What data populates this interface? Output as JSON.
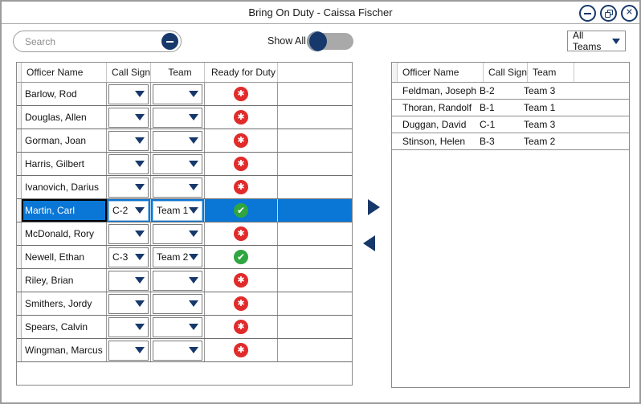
{
  "window": {
    "title": "Bring On Duty - Caissa Fischer",
    "controls": {
      "minimize": "minimize",
      "restore": "restore",
      "close": "close"
    }
  },
  "toolbar": {
    "search_placeholder": "Search",
    "search_value": "",
    "show_all_label": "Show All",
    "show_all_state": "off",
    "team_filter_value": "All Teams"
  },
  "colors": {
    "accent_navy": "#17386b",
    "selection_blue": "#0a77d6",
    "ready_green": "#2fa63f",
    "not_ready_red": "#e12b2b"
  },
  "icons": {
    "ready": "✔",
    "not_ready": "✱",
    "move_right": "right-arrow",
    "move_left": "left-arrow"
  },
  "roster": {
    "headers": [
      "Officer Name",
      "Call Sign",
      "Team",
      "Ready for Duty"
    ],
    "rows": [
      {
        "name": "Barlow, Rod",
        "call_sign": "",
        "team": "",
        "ready": false,
        "selected": false
      },
      {
        "name": "Douglas, Allen",
        "call_sign": "",
        "team": "",
        "ready": false,
        "selected": false
      },
      {
        "name": "Gorman, Joan",
        "call_sign": "",
        "team": "",
        "ready": false,
        "selected": false
      },
      {
        "name": "Harris, Gilbert",
        "call_sign": "",
        "team": "",
        "ready": false,
        "selected": false
      },
      {
        "name": "Ivanovich, Darius",
        "call_sign": "",
        "team": "",
        "ready": false,
        "selected": false
      },
      {
        "name": "Martin, Carl",
        "call_sign": "C-2",
        "team": "Team 1",
        "ready": true,
        "selected": true
      },
      {
        "name": "McDonald, Rory",
        "call_sign": "",
        "team": "",
        "ready": false,
        "selected": false
      },
      {
        "name": "Newell, Ethan",
        "call_sign": "C-3",
        "team": "Team 2",
        "ready": true,
        "selected": false
      },
      {
        "name": "Riley, Brian",
        "call_sign": "",
        "team": "",
        "ready": false,
        "selected": false
      },
      {
        "name": "Smithers, Jordy",
        "call_sign": "",
        "team": "",
        "ready": false,
        "selected": false
      },
      {
        "name": "Spears, Calvin",
        "call_sign": "",
        "team": "",
        "ready": false,
        "selected": false
      },
      {
        "name": "Wingman, Marcus",
        "call_sign": "",
        "team": "",
        "ready": false,
        "selected": false
      }
    ]
  },
  "on_duty": {
    "headers": [
      "Officer Name",
      "Call Sign",
      "Team"
    ],
    "rows": [
      {
        "name": "Feldman, Joseph",
        "call_sign": "B-2",
        "team": "Team 3"
      },
      {
        "name": "Thoran, Randolf",
        "call_sign": "B-1",
        "team": "Team 1"
      },
      {
        "name": "Duggan, David",
        "call_sign": "C-1",
        "team": "Team 3"
      },
      {
        "name": "Stinson, Helen",
        "call_sign": "B-3",
        "team": "Team 2"
      }
    ]
  }
}
